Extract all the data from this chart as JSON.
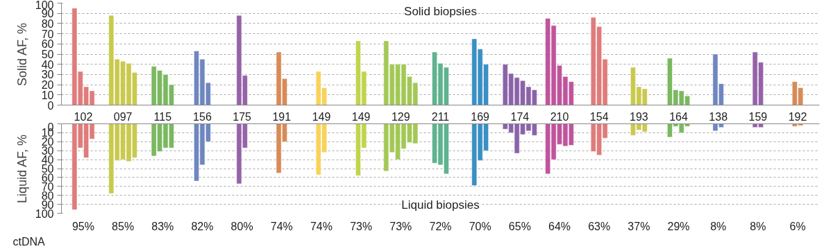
{
  "chart_data": [
    {
      "type": "bar",
      "ylabel": "Solid AF, %",
      "annotations": [
        "Solid biopsies"
      ],
      "grid": "y",
      "categories": [
        "102",
        "097",
        "115",
        "156",
        "175",
        "191",
        "149",
        "149",
        "129",
        "211",
        "169",
        "174",
        "210",
        "154",
        "193",
        "164",
        "138",
        "159",
        "192"
      ],
      "series": [
        {
          "colors": [
            "#e07b7b",
            "#c9c94d",
            "#7ab860",
            "#6f86c0",
            "#9562a8",
            "#d88a57",
            "#f7d35a",
            "#c2d44c",
            "#a3c856",
            "#5fb38e",
            "#3a8fc4",
            "#8b63a8",
            "#c0549c",
            "#e07b7b",
            "#c9c94d",
            "#7ab860",
            "#6f86c0",
            "#9562a8",
            "#d88a57"
          ],
          "values": [
            95,
            88,
            38,
            53,
            88,
            52,
            33,
            63,
            63,
            52,
            65,
            40,
            85,
            86,
            37,
            46,
            50,
            52,
            23
          ]
        },
        {
          "colors": [
            "#e07b7b",
            "#c9c94d",
            "#7ab860",
            "#6f86c0",
            "#9562a8",
            "#d88a57",
            "#f7d35a",
            "#c2d44c",
            "#a3c856",
            "#5fb38e",
            "#3a8fc4",
            "#8b63a8",
            "#c0549c",
            "#e07b7b",
            "#c9c94d",
            "#7ab860",
            "#6f86c0",
            "#9562a8",
            "#d88a57"
          ],
          "values": [
            33,
            45,
            34,
            45,
            29,
            26,
            17,
            33,
            40,
            41,
            55,
            31,
            78,
            77,
            18,
            15,
            21,
            42,
            17
          ]
        },
        {
          "colors": [
            "#e07b7b",
            "#c9c94d",
            "#7ab860",
            "#6f86c0",
            "#9562a8",
            "#d88a57",
            "#f7d35a",
            "#c2d44c",
            "#a3c856",
            "#5fb38e",
            "#3a8fc4",
            "#8b63a8",
            "#c0549c",
            "#e07b7b",
            "#c9c94d",
            "#7ab860",
            "#6f86c0",
            "#9562a8",
            "#d88a57"
          ],
          "values": [
            18,
            43,
            30,
            22,
            null,
            null,
            null,
            null,
            40,
            37,
            40,
            27,
            39,
            45,
            16,
            14,
            null,
            null,
            null
          ]
        },
        {
          "colors": [
            "#e07b7b",
            "#c9c94d",
            "#7ab860",
            "#6f86c0",
            "#9562a8",
            "#d88a57",
            "#f7d35a",
            "#c2d44c",
            "#a3c856",
            "#5fb38e",
            "#3a8fc4",
            "#8b63a8",
            "#c0549c",
            "#e07b7b",
            "#c9c94d",
            "#7ab860",
            "#6f86c0",
            "#9562a8",
            "#d88a57"
          ],
          "values": [
            14,
            41,
            20,
            null,
            null,
            null,
            null,
            null,
            40,
            null,
            null,
            24,
            28,
            null,
            null,
            9,
            null,
            null,
            null
          ]
        },
        {
          "colors": [
            "#e07b7b",
            "#c9c94d",
            "#7ab860",
            "#6f86c0",
            "#9562a8",
            "#d88a57",
            "#f7d35a",
            "#c2d44c",
            "#a3c856",
            "#5fb38e",
            "#3a8fc4",
            "#8b63a8",
            "#c0549c",
            "#e07b7b",
            "#c9c94d",
            "#7ab860",
            "#6f86c0",
            "#9562a8",
            "#d88a57"
          ],
          "values": [
            null,
            32,
            null,
            null,
            null,
            null,
            null,
            null,
            28,
            null,
            null,
            18,
            23,
            null,
            null,
            null,
            null,
            null,
            null
          ]
        },
        {
          "colors": [
            "#e07b7b",
            "#c9c94d",
            "#7ab860",
            "#6f86c0",
            "#9562a8",
            "#d88a57",
            "#f7d35a",
            "#c2d44c",
            "#a3c856",
            "#5fb38e",
            "#3a8fc4",
            "#8b63a8",
            "#c0549c",
            "#e07b7b",
            "#c9c94d",
            "#7ab860",
            "#6f86c0",
            "#9562a8",
            "#d88a57"
          ],
          "values": [
            null,
            null,
            null,
            null,
            null,
            null,
            null,
            null,
            22,
            null,
            null,
            15,
            null,
            null,
            null,
            null,
            null,
            null,
            null
          ]
        }
      ],
      "ylim": [
        0,
        100
      ],
      "yticks": [
        0,
        10,
        20,
        30,
        40,
        50,
        60,
        70,
        80,
        90,
        100
      ]
    },
    {
      "type": "bar",
      "ylabel": "Liquid AF, %",
      "annotations": [
        "Liquid biopsies",
        "ctDNA"
      ],
      "grid": "y",
      "categories": [
        "95%",
        "85%",
        "83%",
        "82%",
        "80%",
        "74%",
        "74%",
        "73%",
        "73%",
        "72%",
        "70%",
        "65%",
        "64%",
        "63%",
        "37%",
        "29%",
        "8%",
        "8%",
        "6%"
      ],
      "series": [
        {
          "colors": [
            "#e07b7b",
            "#c9c94d",
            "#7ab860",
            "#6f86c0",
            "#9562a8",
            "#d88a57",
            "#f7d35a",
            "#c2d44c",
            "#a3c856",
            "#5fb38e",
            "#3a8fc4",
            "#8b63a8",
            "#c0549c",
            "#e07b7b",
            "#c9c94d",
            "#7ab860",
            "#6f86c0",
            "#9562a8",
            "#d88a57"
          ],
          "values": [
            96,
            78,
            36,
            64,
            67,
            55,
            57,
            58,
            53,
            44,
            69,
            6,
            56,
            31,
            13,
            15,
            8,
            4,
            3
          ]
        },
        {
          "colors": [
            "#e07b7b",
            "#c9c94d",
            "#7ab860",
            "#6f86c0",
            "#9562a8",
            "#d88a57",
            "#f7d35a",
            "#c2d44c",
            "#a3c856",
            "#5fb38e",
            "#3a8fc4",
            "#8b63a8",
            "#c0549c",
            "#e07b7b",
            "#c9c94d",
            "#7ab860",
            "#6f86c0",
            "#9562a8",
            "#d88a57"
          ],
          "values": [
            27,
            41,
            31,
            46,
            27,
            20,
            32,
            27,
            32,
            46,
            41,
            10,
            40,
            35,
            7,
            3,
            4,
            4,
            2
          ]
        },
        {
          "colors": [
            "#e07b7b",
            "#c9c94d",
            "#7ab860",
            "#6f86c0",
            "#9562a8",
            "#d88a57",
            "#f7d35a",
            "#c2d44c",
            "#a3c856",
            "#5fb38e",
            "#3a8fc4",
            "#8b63a8",
            "#c0549c",
            "#e07b7b",
            "#c9c94d",
            "#7ab860",
            "#6f86c0",
            "#9562a8",
            "#d88a57"
          ],
          "values": [
            38,
            40,
            27,
            20,
            null,
            null,
            null,
            null,
            40,
            56,
            30,
            33,
            23,
            16,
            9,
            10,
            null,
            null,
            null
          ]
        },
        {
          "colors": [
            "#e07b7b",
            "#c9c94d",
            "#7ab860",
            "#6f86c0",
            "#9562a8",
            "#d88a57",
            "#f7d35a",
            "#c2d44c",
            "#a3c856",
            "#5fb38e",
            "#3a8fc4",
            "#8b63a8",
            "#c0549c",
            "#e07b7b",
            "#c9c94d",
            "#7ab860",
            "#6f86c0",
            "#9562a8",
            "#d88a57"
          ],
          "values": [
            17,
            42,
            27,
            null,
            null,
            null,
            null,
            null,
            28,
            null,
            null,
            12,
            25,
            null,
            null,
            3,
            null,
            null,
            null
          ]
        },
        {
          "colors": [
            "#e07b7b",
            "#c9c94d",
            "#7ab860",
            "#6f86c0",
            "#9562a8",
            "#d88a57",
            "#f7d35a",
            "#c2d44c",
            "#a3c856",
            "#5fb38e",
            "#3a8fc4",
            "#8b63a8",
            "#c0549c",
            "#e07b7b",
            "#c9c94d",
            "#7ab860",
            "#6f86c0",
            "#9562a8",
            "#d88a57"
          ],
          "values": [
            null,
            38,
            null,
            null,
            null,
            null,
            null,
            null,
            21,
            null,
            null,
            8,
            24,
            null,
            null,
            null,
            null,
            null,
            null
          ]
        },
        {
          "colors": [
            "#e07b7b",
            "#c9c94d",
            "#7ab860",
            "#6f86c0",
            "#9562a8",
            "#d88a57",
            "#f7d35a",
            "#c2d44c",
            "#a3c856",
            "#5fb38e",
            "#3a8fc4",
            "#8b63a8",
            "#c0549c",
            "#e07b7b",
            "#c9c94d",
            "#7ab860",
            "#6f86c0",
            "#9562a8",
            "#d88a57"
          ],
          "values": [
            null,
            null,
            null,
            null,
            null,
            null,
            null,
            null,
            22,
            null,
            null,
            13,
            null,
            null,
            null,
            null,
            null,
            null,
            null
          ]
        }
      ],
      "ylim": [
        100,
        0
      ],
      "yticks": [
        0,
        10,
        20,
        30,
        40,
        50,
        60,
        70,
        80,
        90,
        100
      ]
    }
  ]
}
